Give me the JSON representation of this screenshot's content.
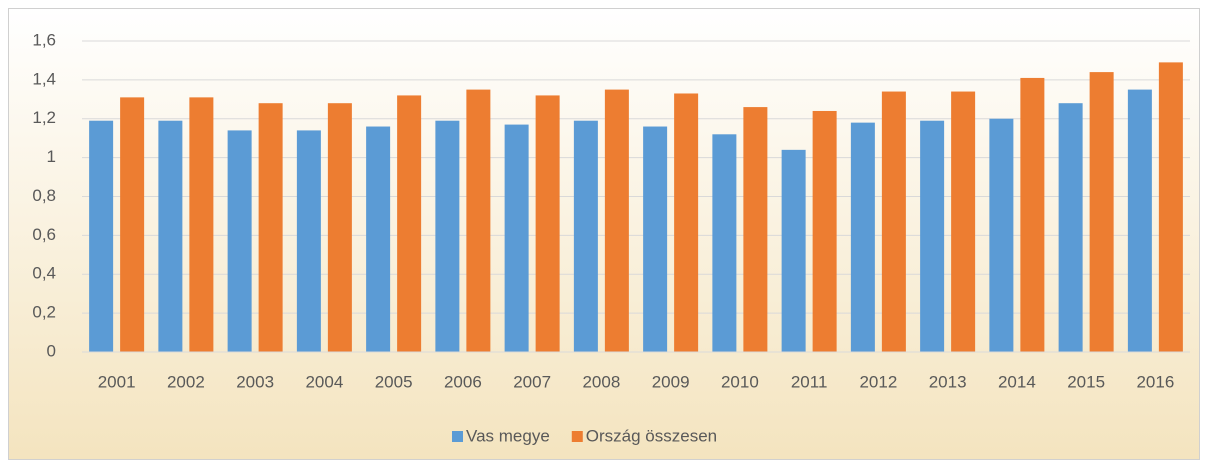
{
  "chart_data": {
    "type": "bar",
    "categories": [
      "2001",
      "2002",
      "2003",
      "2004",
      "2005",
      "2006",
      "2007",
      "2008",
      "2009",
      "2010",
      "2011",
      "2012",
      "2013",
      "2014",
      "2015",
      "2016"
    ],
    "series": [
      {
        "name": "Vas megye",
        "color": "#5b9bd5",
        "values": [
          1.19,
          1.19,
          1.14,
          1.14,
          1.16,
          1.19,
          1.17,
          1.19,
          1.16,
          1.12,
          1.04,
          1.18,
          1.19,
          1.2,
          1.28,
          1.35
        ]
      },
      {
        "name": "Ország összesen",
        "color": "#ed7d31",
        "values": [
          1.31,
          1.31,
          1.28,
          1.28,
          1.32,
          1.35,
          1.32,
          1.35,
          1.33,
          1.26,
          1.24,
          1.34,
          1.34,
          1.41,
          1.44,
          1.49
        ]
      }
    ],
    "ylim": [
      0,
      1.6
    ],
    "yticks": [
      0,
      {
        "value": 0.2,
        "label": "0,2"
      },
      {
        "value": 0.4,
        "label": "0,4"
      },
      {
        "value": 0.6,
        "label": "0,6"
      },
      {
        "value": 0.8,
        "label": "0,8"
      },
      1,
      {
        "value": 1.2,
        "label": "1,2"
      },
      {
        "value": 1.4,
        "label": "1,4"
      },
      {
        "value": 1.6,
        "label": "1,6"
      }
    ],
    "grid": true,
    "legend": "bottom"
  }
}
